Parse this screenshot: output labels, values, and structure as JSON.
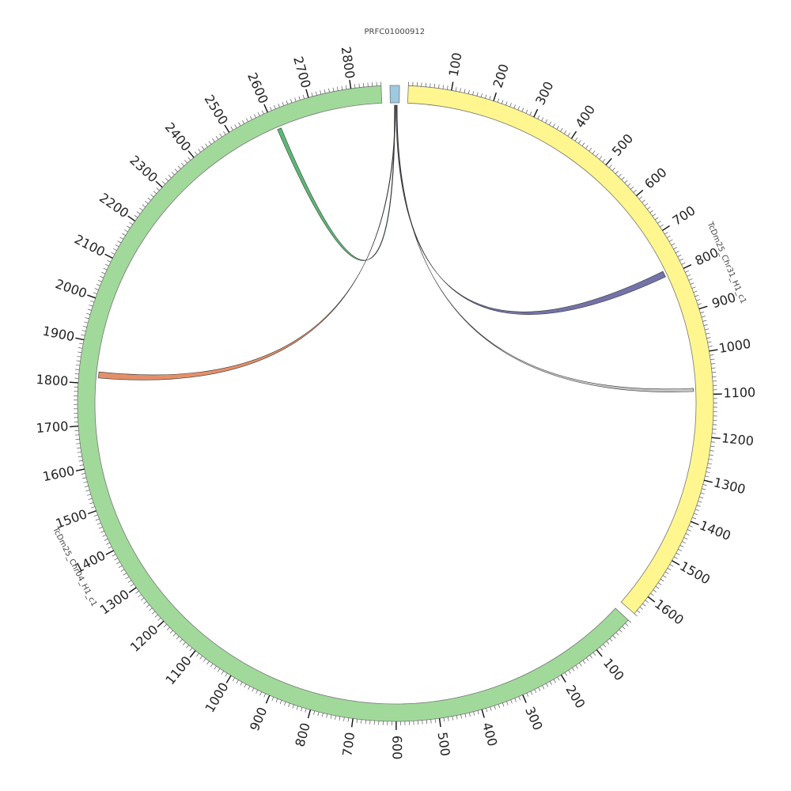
{
  "diagram": {
    "type": "circos",
    "chromosomes": [
      {
        "id": "contig",
        "label": "PRFC01000912",
        "length": 22,
        "color": "#9ecae1",
        "ticks": []
      },
      {
        "id": "chr31",
        "label": "TcDm25_Chr31_H1_c1",
        "length": 1650,
        "color": "#fff68f",
        "ticks": [
          "100",
          "200",
          "300",
          "400",
          "500",
          "600",
          "700",
          "800",
          "900",
          "1000",
          "1100",
          "1200",
          "1300",
          "1400",
          "1500",
          "1600"
        ]
      },
      {
        "id": "chr04",
        "label": "TcDm25_Chr04_H1_c1",
        "length": 2870,
        "color": "#a1d99b",
        "ticks": [
          "100",
          "200",
          "300",
          "400",
          "500",
          "600",
          "700",
          "800",
          "900",
          "1000",
          "1100",
          "1200",
          "1300",
          "1400",
          "1500",
          "1600",
          "1700",
          "1800",
          "1900",
          "2000",
          "2100",
          "2200",
          "2300",
          "2400",
          "2500",
          "2600",
          "2700",
          "2800"
        ]
      }
    ],
    "links": [
      {
        "name": "link-contig-chr31-800",
        "source": "contig",
        "src_start": 14,
        "src_end": 16,
        "target": "chr31",
        "tgt_start": 785,
        "tgt_end": 800,
        "color": "#5a5a9a"
      },
      {
        "name": "link-contig-chr31-1085",
        "source": "contig",
        "src_start": 16,
        "src_end": 17,
        "target": "chr31",
        "tgt_start": 1084,
        "tgt_end": 1092,
        "color": "#bbbbbb"
      },
      {
        "name": "link-contig-chr04-2610",
        "source": "contig",
        "src_start": 10,
        "src_end": 11.5,
        "target": "chr04",
        "tgt_start": 2605,
        "tgt_end": 2615,
        "color": "#41ab5d"
      },
      {
        "name": "link-contig-chr04-1820",
        "source": "contig",
        "src_start": 11.5,
        "src_end": 13,
        "target": "chr04",
        "tgt_start": 1815,
        "tgt_end": 1830,
        "color": "#e07b4f"
      }
    ]
  }
}
